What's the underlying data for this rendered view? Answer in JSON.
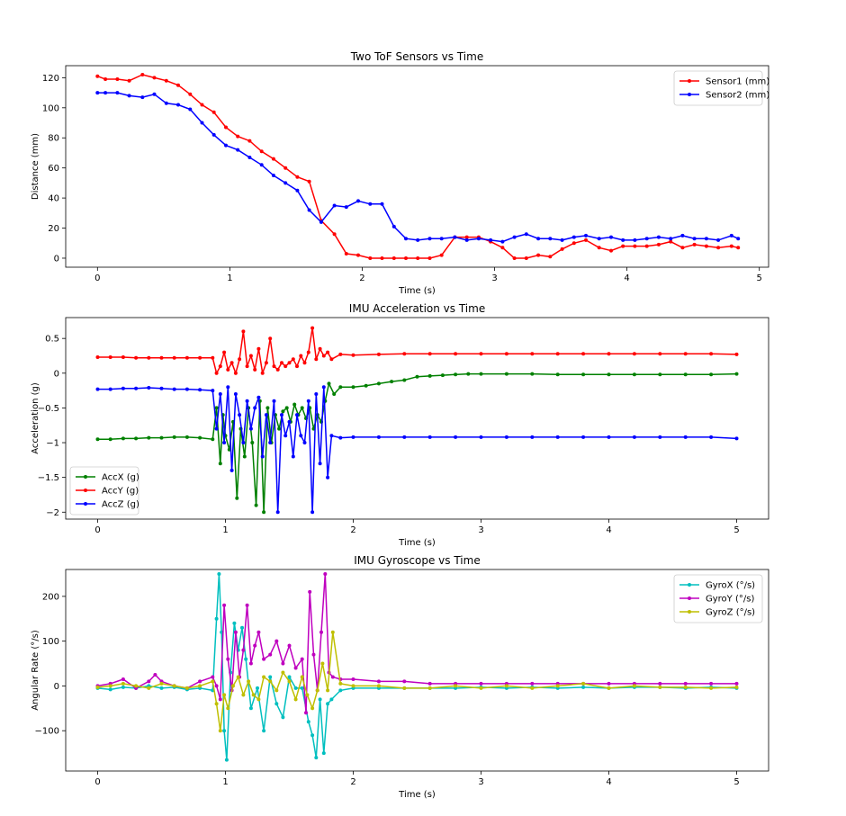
{
  "chart_data": [
    {
      "type": "line",
      "title": "Two ToF Sensors vs Time",
      "xlabel": "Time (s)",
      "ylabel": "Distance (mm)",
      "xlim": [
        -0.24,
        5.07
      ],
      "ylim": [
        -6,
        128
      ],
      "xticks": [
        0,
        1,
        2,
        3,
        4,
        5
      ],
      "yticks": [
        0,
        20,
        40,
        60,
        80,
        100,
        120
      ],
      "legend": "top-right",
      "grid": false,
      "series": [
        {
          "name": "Sensor1 (mm)",
          "color": "#ff0000",
          "x": [
            0.0,
            0.06,
            0.15,
            0.24,
            0.34,
            0.43,
            0.52,
            0.61,
            0.7,
            0.79,
            0.88,
            0.97,
            1.06,
            1.15,
            1.24,
            1.33,
            1.42,
            1.51,
            1.6,
            1.69,
            1.79,
            1.88,
            1.97,
            2.06,
            2.15,
            2.24,
            2.33,
            2.42,
            2.51,
            2.6,
            2.7,
            2.79,
            2.88,
            2.97,
            3.06,
            3.15,
            3.24,
            3.33,
            3.42,
            3.51,
            3.6,
            3.69,
            3.79,
            3.88,
            3.97,
            4.06,
            4.15,
            4.24,
            4.33,
            4.42,
            4.51,
            4.6,
            4.69,
            4.79,
            4.84
          ],
          "y": [
            121,
            119,
            119,
            118,
            122,
            120,
            118,
            115,
            109,
            102,
            97,
            87,
            81,
            78,
            71,
            66,
            60,
            54,
            51,
            25,
            16,
            3,
            2,
            0,
            0,
            0,
            0,
            0,
            0,
            2,
            14,
            14,
            14,
            11,
            7,
            0,
            0,
            2,
            1,
            6,
            10,
            12,
            7,
            5,
            8,
            8,
            8,
            9,
            11,
            7,
            9,
            8,
            7,
            8,
            7
          ]
        },
        {
          "name": "Sensor2 (mm)",
          "color": "#0000ff",
          "x": [
            0.0,
            0.06,
            0.15,
            0.24,
            0.34,
            0.43,
            0.52,
            0.61,
            0.7,
            0.79,
            0.88,
            0.97,
            1.06,
            1.15,
            1.24,
            1.33,
            1.42,
            1.51,
            1.6,
            1.69,
            1.79,
            1.88,
            1.97,
            2.06,
            2.15,
            2.24,
            2.33,
            2.42,
            2.51,
            2.6,
            2.7,
            2.79,
            2.88,
            2.97,
            3.06,
            3.15,
            3.24,
            3.33,
            3.42,
            3.51,
            3.6,
            3.69,
            3.79,
            3.88,
            3.97,
            4.06,
            4.15,
            4.24,
            4.33,
            4.42,
            4.51,
            4.6,
            4.69,
            4.79,
            4.84
          ],
          "y": [
            110,
            110,
            110,
            108,
            107,
            109,
            103,
            102,
            99,
            90,
            82,
            75,
            72,
            67,
            62,
            55,
            50,
            45,
            32,
            24,
            35,
            34,
            38,
            36,
            36,
            21,
            13,
            12,
            13,
            13,
            14,
            12,
            13,
            12,
            11,
            14,
            16,
            13,
            13,
            12,
            14,
            15,
            13,
            14,
            12,
            12,
            13,
            14,
            13,
            15,
            13,
            13,
            12,
            15,
            13
          ]
        }
      ]
    },
    {
      "type": "line",
      "title": "IMU Acceleration vs Time",
      "xlabel": "Time (s)",
      "ylabel": "Acceleration (g)",
      "xlim": [
        -0.25,
        5.25
      ],
      "ylim": [
        -2.1,
        0.8
      ],
      "xticks": [
        0,
        1,
        2,
        3,
        4,
        5
      ],
      "yticks": [
        -2.0,
        -1.5,
        -1.0,
        -0.5,
        0.0,
        0.5
      ],
      "legend": "lower-left",
      "grid": false,
      "series": [
        {
          "name": "AccX (g)",
          "color": "#008000",
          "x": [
            0,
            0.1,
            0.2,
            0.3,
            0.4,
            0.5,
            0.6,
            0.7,
            0.8,
            0.9,
            0.93,
            0.96,
            0.98,
            1.0,
            1.03,
            1.06,
            1.09,
            1.12,
            1.15,
            1.18,
            1.21,
            1.24,
            1.27,
            1.3,
            1.33,
            1.36,
            1.39,
            1.42,
            1.45,
            1.48,
            1.51,
            1.54,
            1.57,
            1.6,
            1.63,
            1.66,
            1.69,
            1.72,
            1.75,
            1.78,
            1.81,
            1.85,
            1.9,
            2.0,
            2.1,
            2.2,
            2.3,
            2.4,
            2.5,
            2.6,
            2.7,
            2.8,
            2.9,
            3.0,
            3.2,
            3.4,
            3.6,
            3.8,
            4.0,
            4.2,
            4.4,
            4.6,
            4.8,
            5.0
          ],
          "y": [
            -0.95,
            -0.95,
            -0.94,
            -0.94,
            -0.93,
            -0.93,
            -0.92,
            -0.92,
            -0.93,
            -0.95,
            -0.5,
            -1.3,
            -0.6,
            -0.9,
            -1.1,
            -0.7,
            -1.8,
            -0.8,
            -1.2,
            -0.5,
            -1.0,
            -1.9,
            -0.4,
            -2.0,
            -0.5,
            -1.0,
            -0.6,
            -0.8,
            -0.55,
            -0.5,
            -0.7,
            -0.45,
            -0.6,
            -0.5,
            -0.65,
            -0.5,
            -0.8,
            -0.6,
            -0.7,
            -0.4,
            -0.15,
            -0.3,
            -0.2,
            -0.2,
            -0.18,
            -0.15,
            -0.12,
            -0.1,
            -0.05,
            -0.04,
            -0.03,
            -0.02,
            -0.01,
            -0.01,
            -0.01,
            -0.01,
            -0.02,
            -0.02,
            -0.02,
            -0.02,
            -0.02,
            -0.02,
            -0.02,
            -0.01
          ]
        },
        {
          "name": "AccY (g)",
          "color": "#ff0000",
          "x": [
            0,
            0.1,
            0.2,
            0.3,
            0.4,
            0.5,
            0.6,
            0.7,
            0.8,
            0.9,
            0.93,
            0.96,
            0.99,
            1.02,
            1.05,
            1.08,
            1.11,
            1.14,
            1.17,
            1.2,
            1.23,
            1.26,
            1.29,
            1.32,
            1.35,
            1.38,
            1.41,
            1.44,
            1.47,
            1.5,
            1.53,
            1.56,
            1.59,
            1.62,
            1.65,
            1.68,
            1.71,
            1.74,
            1.77,
            1.8,
            1.83,
            1.9,
            2.0,
            2.2,
            2.4,
            2.6,
            2.8,
            3.0,
            3.2,
            3.4,
            3.6,
            3.8,
            4.0,
            4.2,
            4.4,
            4.6,
            4.8,
            5.0
          ],
          "y": [
            0.23,
            0.23,
            0.23,
            0.22,
            0.22,
            0.22,
            0.22,
            0.22,
            0.22,
            0.22,
            0.0,
            0.1,
            0.3,
            0.05,
            0.15,
            0.0,
            0.2,
            0.6,
            0.1,
            0.25,
            0.05,
            0.35,
            0.0,
            0.15,
            0.5,
            0.1,
            0.05,
            0.15,
            0.1,
            0.15,
            0.2,
            0.1,
            0.25,
            0.15,
            0.3,
            0.65,
            0.2,
            0.35,
            0.25,
            0.3,
            0.2,
            0.27,
            0.26,
            0.27,
            0.28,
            0.28,
            0.28,
            0.28,
            0.28,
            0.28,
            0.28,
            0.28,
            0.28,
            0.28,
            0.28,
            0.28,
            0.28,
            0.27
          ]
        },
        {
          "name": "AccZ (g)",
          "color": "#0000ff",
          "x": [
            0,
            0.1,
            0.2,
            0.3,
            0.4,
            0.5,
            0.6,
            0.7,
            0.8,
            0.9,
            0.93,
            0.96,
            0.99,
            1.02,
            1.05,
            1.08,
            1.11,
            1.14,
            1.17,
            1.2,
            1.23,
            1.26,
            1.29,
            1.32,
            1.35,
            1.38,
            1.41,
            1.44,
            1.47,
            1.5,
            1.53,
            1.56,
            1.59,
            1.62,
            1.65,
            1.68,
            1.71,
            1.74,
            1.77,
            1.8,
            1.83,
            1.9,
            2.0,
            2.2,
            2.4,
            2.6,
            2.8,
            3.0,
            3.2,
            3.4,
            3.6,
            3.8,
            4.0,
            4.2,
            4.4,
            4.6,
            4.8,
            5.0
          ],
          "y": [
            -0.23,
            -0.23,
            -0.22,
            -0.22,
            -0.21,
            -0.22,
            -0.23,
            -0.23,
            -0.24,
            -0.25,
            -0.8,
            -0.3,
            -1.0,
            -0.2,
            -1.4,
            -0.3,
            -0.6,
            -1.0,
            -0.4,
            -0.8,
            -0.5,
            -0.35,
            -1.2,
            -0.6,
            -1.0,
            -0.4,
            -2.0,
            -0.6,
            -0.9,
            -0.7,
            -1.2,
            -0.6,
            -0.9,
            -1.0,
            -0.4,
            -2.0,
            -0.3,
            -1.3,
            -0.2,
            -1.5,
            -0.9,
            -0.93,
            -0.92,
            -0.92,
            -0.92,
            -0.92,
            -0.92,
            -0.92,
            -0.92,
            -0.92,
            -0.92,
            -0.92,
            -0.92,
            -0.92,
            -0.92,
            -0.92,
            -0.92,
            -0.94
          ]
        }
      ]
    },
    {
      "type": "line",
      "title": "IMU Gyroscope vs Time",
      "xlabel": "Time (s)",
      "ylabel": "Angular Rate (°/s)",
      "xlim": [
        -0.25,
        5.25
      ],
      "ylim": [
        -190,
        260
      ],
      "xticks": [
        0,
        1,
        2,
        3,
        4,
        5
      ],
      "yticks": [
        -100,
        0,
        100,
        200
      ],
      "legend": "top-right",
      "grid": false,
      "series": [
        {
          "name": "GyroX (°/s)",
          "color": "#00bfbf",
          "x": [
            0,
            0.1,
            0.2,
            0.3,
            0.4,
            0.5,
            0.6,
            0.7,
            0.8,
            0.9,
            0.93,
            0.95,
            0.97,
            0.99,
            1.01,
            1.04,
            1.07,
            1.1,
            1.13,
            1.16,
            1.2,
            1.25,
            1.3,
            1.35,
            1.4,
            1.45,
            1.5,
            1.55,
            1.6,
            1.65,
            1.68,
            1.71,
            1.74,
            1.77,
            1.8,
            1.83,
            1.9,
            2.0,
            2.2,
            2.4,
            2.6,
            2.8,
            3.0,
            3.2,
            3.4,
            3.6,
            3.8,
            4.0,
            4.2,
            4.4,
            4.6,
            4.8,
            5.0
          ],
          "y": [
            -5,
            -8,
            -3,
            -5,
            0,
            -5,
            -3,
            -8,
            -5,
            -10,
            150,
            250,
            120,
            -100,
            -165,
            30,
            140,
            80,
            130,
            60,
            -50,
            -5,
            -100,
            20,
            -40,
            -70,
            20,
            -5,
            -5,
            -80,
            -110,
            -160,
            -30,
            -150,
            -40,
            -30,
            -10,
            -5,
            -5,
            -5,
            -5,
            -5,
            -3,
            -5,
            -3,
            -5,
            -3,
            -5,
            -3,
            -3,
            -5,
            -3,
            -5
          ]
        },
        {
          "name": "GyroY (°/s)",
          "color": "#bf00bf",
          "x": [
            0,
            0.1,
            0.2,
            0.3,
            0.4,
            0.45,
            0.5,
            0.6,
            0.7,
            0.8,
            0.9,
            0.93,
            0.96,
            0.99,
            1.02,
            1.05,
            1.08,
            1.11,
            1.14,
            1.17,
            1.2,
            1.23,
            1.26,
            1.3,
            1.35,
            1.4,
            1.45,
            1.5,
            1.55,
            1.6,
            1.63,
            1.66,
            1.69,
            1.72,
            1.75,
            1.78,
            1.81,
            1.84,
            1.9,
            2.0,
            2.2,
            2.4,
            2.6,
            2.8,
            3.0,
            3.2,
            3.4,
            3.6,
            3.8,
            4.0,
            4.2,
            4.4,
            4.6,
            4.8,
            5.0
          ],
          "y": [
            0,
            5,
            15,
            -5,
            10,
            25,
            10,
            0,
            -5,
            10,
            20,
            0,
            -30,
            180,
            60,
            -10,
            120,
            20,
            80,
            180,
            50,
            90,
            120,
            60,
            70,
            100,
            50,
            90,
            40,
            60,
            -60,
            210,
            70,
            -10,
            120,
            250,
            30,
            20,
            15,
            15,
            10,
            10,
            5,
            5,
            5,
            5,
            5,
            5,
            5,
            5,
            5,
            5,
            5,
            5,
            5
          ]
        },
        {
          "name": "GyroZ (°/s)",
          "color": "#bfbf00",
          "x": [
            0,
            0.1,
            0.2,
            0.3,
            0.4,
            0.5,
            0.6,
            0.7,
            0.8,
            0.9,
            0.93,
            0.96,
            0.99,
            1.02,
            1.06,
            1.1,
            1.14,
            1.18,
            1.22,
            1.26,
            1.3,
            1.35,
            1.4,
            1.45,
            1.5,
            1.55,
            1.6,
            1.64,
            1.68,
            1.72,
            1.76,
            1.8,
            1.84,
            1.9,
            2.0,
            2.2,
            2.4,
            2.6,
            2.8,
            3.0,
            3.2,
            3.4,
            3.6,
            3.8,
            4.0,
            4.2,
            4.4,
            4.6,
            4.8,
            5.0
          ],
          "y": [
            -3,
            0,
            5,
            0,
            -5,
            5,
            0,
            -5,
            0,
            10,
            -40,
            -100,
            -20,
            -50,
            0,
            20,
            -20,
            10,
            -20,
            -30,
            20,
            10,
            -10,
            30,
            10,
            -30,
            20,
            -20,
            -50,
            -10,
            50,
            -10,
            120,
            5,
            0,
            0,
            -5,
            -5,
            0,
            -5,
            0,
            -5,
            0,
            5,
            -5,
            0,
            -3,
            -3,
            -5,
            -3
          ]
        }
      ]
    }
  ]
}
